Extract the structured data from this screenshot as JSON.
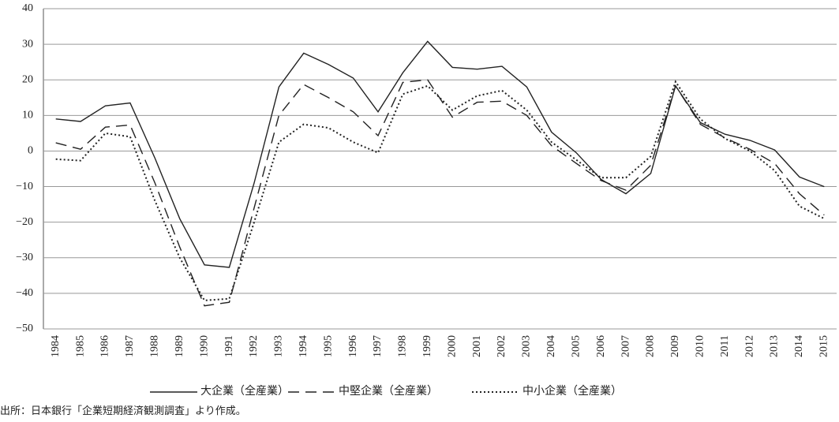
{
  "chart_data": {
    "type": "line",
    "categories": [
      "1984",
      "1985",
      "1986",
      "1987",
      "1988",
      "1989",
      "1990",
      "1991",
      "1992",
      "1993",
      "1994",
      "1995",
      "1996",
      "1997",
      "1998",
      "1999",
      "2000",
      "2001",
      "2002",
      "2003",
      "2004",
      "2005",
      "2006",
      "2007",
      "2008",
      "2009",
      "2010",
      "2011",
      "2012",
      "2013",
      "2014",
      "2015"
    ],
    "series": [
      {
        "name": "大企業（全産業）",
        "color": "#222222",
        "dash": "solid",
        "values": [
          9,
          8.3,
          12.7,
          13.5,
          -2,
          -19,
          -32,
          -32.7,
          -9,
          18,
          27.5,
          24.3,
          20.5,
          11,
          22,
          30.8,
          23.5,
          23,
          23.8,
          18,
          5.3,
          -0.5,
          -8,
          -12,
          -6.3,
          18.3,
          8,
          4.7,
          3,
          0.3,
          -7.3,
          -10
        ]
      },
      {
        "name": "中堅企業（全産業）",
        "color": "#222222",
        "dash": "dashed",
        "values": [
          2.3,
          0.5,
          6.7,
          7.3,
          -9,
          -27,
          -43.5,
          -42.5,
          -16,
          10,
          18.7,
          15,
          11,
          4.3,
          19.3,
          20,
          9.5,
          13.7,
          14,
          10,
          1.5,
          -3.5,
          -8.3,
          -11,
          -4,
          18.3,
          7.5,
          3.7,
          0.5,
          -3.5,
          -12,
          -18
        ]
      },
      {
        "name": "中小企業（全産業）",
        "color": "#222222",
        "dash": "dotted",
        "values": [
          -2.3,
          -2.7,
          5,
          4,
          -14,
          -30,
          -42,
          -41.5,
          -20,
          2.5,
          7.5,
          6.5,
          2.5,
          -0.5,
          16,
          18.3,
          11.5,
          15.5,
          17,
          11.5,
          2.5,
          -2.5,
          -7.5,
          -7.5,
          -1.5,
          19.5,
          9,
          3.5,
          0,
          -5.5,
          -15.5,
          -19
        ]
      }
    ],
    "ylim": [
      -50,
      40
    ],
    "yticks": [
      {
        "value": -50,
        "label": "−50"
      },
      {
        "value": -40,
        "label": "−40"
      },
      {
        "value": -30,
        "label": "−30"
      },
      {
        "value": -20,
        "label": "−20"
      },
      {
        "value": -10,
        "label": "−10"
      },
      0,
      10,
      20,
      30,
      40
    ],
    "grid": true,
    "legend": "bottom",
    "note": "出所：日本銀行「企業短期経済観測調査」より作成。"
  }
}
